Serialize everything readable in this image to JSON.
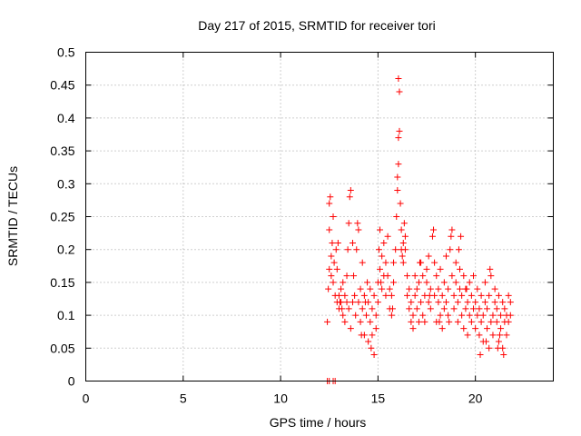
{
  "chart_data": {
    "type": "scatter",
    "title": "Day 217 of 2015, SRMTID for receiver tori",
    "xlabel": "GPS time / hours",
    "ylabel": "SRMTID / TECUs",
    "xlim": [
      0,
      24
    ],
    "ylim": [
      0,
      0.5
    ],
    "xticks": [
      0,
      5,
      10,
      15,
      20
    ],
    "xtick_labels": [
      "0",
      "5",
      "10",
      "15",
      "20"
    ],
    "yticks": [
      0,
      0.05,
      0.1,
      0.15,
      0.2,
      0.25,
      0.3,
      0.35,
      0.4,
      0.45,
      0.5
    ],
    "ytick_labels": [
      "0",
      "0.05",
      "0.1",
      "0.15",
      "0.2",
      "0.25",
      "0.3",
      "0.35",
      "0.4",
      "0.45",
      "0.5"
    ],
    "grid": true,
    "marker": "+",
    "color": "#ff0000",
    "series": [
      {
        "name": "SRMTID",
        "points": [
          [
            12.4,
            0.0
          ],
          [
            12.5,
            0.0
          ],
          [
            12.7,
            0.0
          ],
          [
            12.8,
            0.0
          ],
          [
            12.4,
            0.09
          ],
          [
            12.45,
            0.14
          ],
          [
            12.5,
            0.17
          ],
          [
            12.5,
            0.23
          ],
          [
            12.5,
            0.27
          ],
          [
            12.55,
            0.28
          ],
          [
            12.6,
            0.16
          ],
          [
            12.6,
            0.19
          ],
          [
            12.65,
            0.21
          ],
          [
            12.7,
            0.15
          ],
          [
            12.7,
            0.25
          ],
          [
            12.75,
            0.18
          ],
          [
            12.8,
            0.13
          ],
          [
            12.85,
            0.2
          ],
          [
            12.9,
            0.17
          ],
          [
            12.95,
            0.21
          ],
          [
            13.0,
            0.13
          ],
          [
            13.0,
            0.11
          ],
          [
            13.1,
            0.12
          ],
          [
            13.1,
            0.14
          ],
          [
            13.2,
            0.1
          ],
          [
            13.2,
            0.15
          ],
          [
            13.3,
            0.13
          ],
          [
            13.3,
            0.09
          ],
          [
            13.4,
            0.12
          ],
          [
            13.4,
            0.16
          ],
          [
            13.5,
            0.11
          ],
          [
            13.5,
            0.24
          ],
          [
            13.55,
            0.28
          ],
          [
            13.6,
            0.29
          ],
          [
            13.6,
            0.08
          ],
          [
            13.7,
            0.12
          ],
          [
            13.7,
            0.21
          ],
          [
            13.75,
            0.16
          ],
          [
            13.8,
            0.13
          ],
          [
            13.85,
            0.1
          ],
          [
            13.9,
            0.2
          ],
          [
            13.95,
            0.24
          ],
          [
            14.0,
            0.23
          ],
          [
            14.0,
            0.12
          ],
          [
            14.1,
            0.09
          ],
          [
            14.1,
            0.14
          ],
          [
            14.2,
            0.11
          ],
          [
            14.2,
            0.18
          ],
          [
            14.3,
            0.13
          ],
          [
            14.3,
            0.07
          ],
          [
            14.4,
            0.1
          ],
          [
            14.45,
            0.15
          ],
          [
            14.5,
            0.06
          ],
          [
            14.5,
            0.12
          ],
          [
            14.6,
            0.09
          ],
          [
            14.6,
            0.14
          ],
          [
            14.7,
            0.11
          ],
          [
            14.7,
            0.07
          ],
          [
            14.8,
            0.04
          ],
          [
            14.8,
            0.13
          ],
          [
            14.9,
            0.1
          ],
          [
            14.9,
            0.08
          ],
          [
            15.0,
            0.12
          ],
          [
            15.0,
            0.15
          ],
          [
            15.05,
            0.2
          ],
          [
            15.1,
            0.23
          ],
          [
            15.1,
            0.17
          ],
          [
            15.2,
            0.14
          ],
          [
            15.2,
            0.19
          ],
          [
            15.3,
            0.16
          ],
          [
            15.3,
            0.21
          ],
          [
            15.4,
            0.18
          ],
          [
            15.4,
            0.13
          ],
          [
            15.5,
            0.22
          ],
          [
            15.5,
            0.16
          ],
          [
            15.6,
            0.14
          ],
          [
            15.6,
            0.11
          ],
          [
            15.7,
            0.1
          ],
          [
            15.7,
            0.13
          ],
          [
            15.8,
            0.15
          ],
          [
            15.8,
            0.18
          ],
          [
            15.9,
            0.2
          ],
          [
            15.95,
            0.25
          ],
          [
            16.0,
            0.29
          ],
          [
            16.0,
            0.31
          ],
          [
            16.05,
            0.33
          ],
          [
            16.05,
            0.37
          ],
          [
            16.1,
            0.38
          ],
          [
            16.1,
            0.44
          ],
          [
            16.05,
            0.46
          ],
          [
            16.15,
            0.27
          ],
          [
            16.2,
            0.23
          ],
          [
            16.2,
            0.2
          ],
          [
            16.3,
            0.21
          ],
          [
            16.3,
            0.18
          ],
          [
            16.4,
            0.2
          ],
          [
            16.4,
            0.22
          ],
          [
            16.5,
            0.13
          ],
          [
            16.5,
            0.16
          ],
          [
            16.6,
            0.11
          ],
          [
            16.6,
            0.14
          ],
          [
            16.7,
            0.09
          ],
          [
            16.7,
            0.12
          ],
          [
            16.8,
            0.08
          ],
          [
            16.8,
            0.1
          ],
          [
            16.9,
            0.13
          ],
          [
            16.9,
            0.16
          ],
          [
            17.0,
            0.11
          ],
          [
            17.0,
            0.14
          ],
          [
            17.1,
            0.09
          ],
          [
            17.1,
            0.15
          ],
          [
            17.2,
            0.12
          ],
          [
            17.2,
            0.18
          ],
          [
            17.3,
            0.1
          ],
          [
            17.3,
            0.16
          ],
          [
            17.4,
            0.13
          ],
          [
            17.4,
            0.09
          ],
          [
            17.5,
            0.17
          ],
          [
            17.5,
            0.15
          ],
          [
            17.6,
            0.12
          ],
          [
            17.6,
            0.19
          ],
          [
            17.7,
            0.11
          ],
          [
            17.7,
            0.14
          ],
          [
            17.8,
            0.22
          ],
          [
            17.85,
            0.23
          ],
          [
            17.9,
            0.18
          ],
          [
            17.9,
            0.13
          ],
          [
            18.0,
            0.09
          ],
          [
            18.0,
            0.16
          ],
          [
            18.1,
            0.12
          ],
          [
            18.1,
            0.14
          ],
          [
            18.2,
            0.1
          ],
          [
            18.2,
            0.17
          ],
          [
            18.3,
            0.13
          ],
          [
            18.3,
            0.08
          ],
          [
            18.4,
            0.11
          ],
          [
            18.4,
            0.15
          ],
          [
            18.5,
            0.19
          ],
          [
            18.5,
            0.12
          ],
          [
            18.6,
            0.1
          ],
          [
            18.6,
            0.14
          ],
          [
            18.7,
            0.2
          ],
          [
            18.75,
            0.22
          ],
          [
            18.8,
            0.23
          ],
          [
            18.8,
            0.16
          ],
          [
            18.9,
            0.13
          ],
          [
            18.9,
            0.11
          ],
          [
            19.0,
            0.15
          ],
          [
            19.0,
            0.18
          ],
          [
            19.1,
            0.12
          ],
          [
            19.1,
            0.09
          ],
          [
            19.2,
            0.14
          ],
          [
            19.2,
            0.17
          ],
          [
            19.3,
            0.1
          ],
          [
            19.3,
            0.13
          ],
          [
            19.4,
            0.08
          ],
          [
            19.4,
            0.16
          ],
          [
            19.5,
            0.11
          ],
          [
            19.5,
            0.14
          ],
          [
            19.6,
            0.07
          ],
          [
            19.6,
            0.12
          ],
          [
            19.7,
            0.1
          ],
          [
            19.7,
            0.15
          ],
          [
            19.8,
            0.09
          ],
          [
            19.8,
            0.13
          ],
          [
            19.9,
            0.11
          ],
          [
            19.9,
            0.16
          ],
          [
            20.0,
            0.08
          ],
          [
            20.0,
            0.12
          ],
          [
            20.1,
            0.1
          ],
          [
            20.1,
            0.14
          ],
          [
            20.2,
            0.07
          ],
          [
            20.2,
            0.11
          ],
          [
            20.3,
            0.09
          ],
          [
            20.3,
            0.13
          ],
          [
            20.4,
            0.06
          ],
          [
            20.4,
            0.1
          ],
          [
            20.5,
            0.12
          ],
          [
            20.5,
            0.15
          ],
          [
            20.6,
            0.08
          ],
          [
            20.6,
            0.11
          ],
          [
            20.7,
            0.05
          ],
          [
            20.7,
            0.13
          ],
          [
            20.8,
            0.09
          ],
          [
            20.8,
            0.16
          ],
          [
            20.9,
            0.1
          ],
          [
            20.9,
            0.07
          ],
          [
            21.0,
            0.12
          ],
          [
            21.0,
            0.14
          ],
          [
            21.1,
            0.09
          ],
          [
            21.1,
            0.11
          ],
          [
            21.2,
            0.06
          ],
          [
            21.2,
            0.13
          ],
          [
            21.3,
            0.1
          ],
          [
            21.3,
            0.08
          ],
          [
            21.4,
            0.12
          ],
          [
            21.4,
            0.05
          ],
          [
            21.5,
            0.09
          ],
          [
            21.5,
            0.11
          ],
          [
            21.6,
            0.1
          ],
          [
            21.6,
            0.07
          ],
          [
            21.7,
            0.13
          ],
          [
            21.7,
            0.09
          ],
          [
            21.8,
            0.12
          ],
          [
            21.8,
            0.1
          ],
          [
            13.05,
            0.12
          ],
          [
            13.15,
            0.11
          ],
          [
            14.15,
            0.07
          ],
          [
            14.65,
            0.05
          ],
          [
            16.25,
            0.19
          ],
          [
            16.35,
            0.24
          ],
          [
            17.65,
            0.13
          ],
          [
            18.15,
            0.09
          ],
          [
            19.25,
            0.22
          ],
          [
            19.15,
            0.2
          ],
          [
            20.25,
            0.04
          ],
          [
            20.75,
            0.17
          ],
          [
            21.25,
            0.07
          ],
          [
            21.45,
            0.04
          ],
          [
            15.75,
            0.11
          ],
          [
            15.15,
            0.15
          ],
          [
            13.45,
            0.2
          ],
          [
            12.9,
            0.12
          ],
          [
            14.35,
            0.12
          ],
          [
            17.15,
            0.18
          ],
          [
            18.65,
            0.09
          ],
          [
            19.55,
            0.14
          ],
          [
            20.55,
            0.06
          ],
          [
            21.15,
            0.05
          ]
        ]
      }
    ]
  }
}
